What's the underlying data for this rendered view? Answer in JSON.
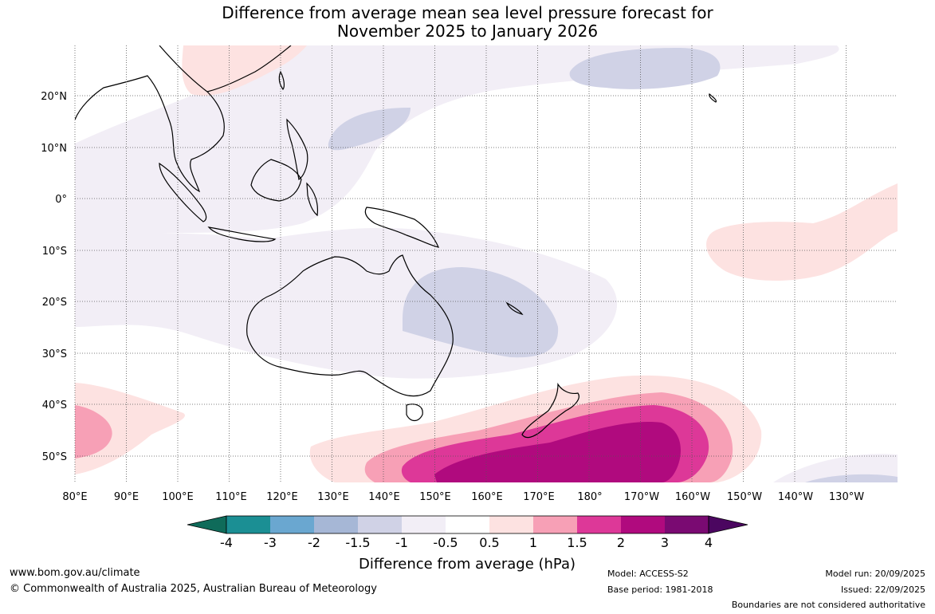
{
  "title": {
    "line1": "Difference from average mean sea level pressure forecast for",
    "line2": "November 2025 to January 2026"
  },
  "map": {
    "lon_labels": [
      "80°E",
      "90°E",
      "100°E",
      "110°E",
      "120°E",
      "130°E",
      "140°E",
      "150°E",
      "160°E",
      "170°E",
      "180°",
      "170°W",
      "160°W",
      "150°W",
      "140°W",
      "130°W"
    ],
    "lat_labels": [
      "20°N",
      "10°N",
      "0°",
      "10°S",
      "20°S",
      "30°S",
      "40°S",
      "50°S"
    ]
  },
  "colorbar": {
    "ticks": [
      "-4",
      "-3",
      "-2",
      "-1.5",
      "-1",
      "-0.5",
      "0.5",
      "1",
      "1.5",
      "2",
      "3",
      "4"
    ],
    "colors": [
      "#0f6b5a",
      "#1b8f94",
      "#6aa7d0",
      "#a6b7d6",
      "#d0d2e6",
      "#f2eef6",
      "#ffffff",
      "#fde2e1",
      "#f7a0b6",
      "#dd3898",
      "#b00a7e",
      "#7a0a72",
      "#4b0660"
    ],
    "label": "Difference from average (hPa)"
  },
  "footer": {
    "website": "www.bom.gov.au/climate",
    "copyright": "© Commonwealth of Australia 2025, Australian Bureau of Meteorology",
    "model": "Model: ACCESS-S2",
    "base_period": "Base period: 1981-2018",
    "model_run": "Model run: 20/09/2025",
    "issued": "Issued: 22/09/2025",
    "disclaimer": "Boundaries are not considered authoritative"
  }
}
